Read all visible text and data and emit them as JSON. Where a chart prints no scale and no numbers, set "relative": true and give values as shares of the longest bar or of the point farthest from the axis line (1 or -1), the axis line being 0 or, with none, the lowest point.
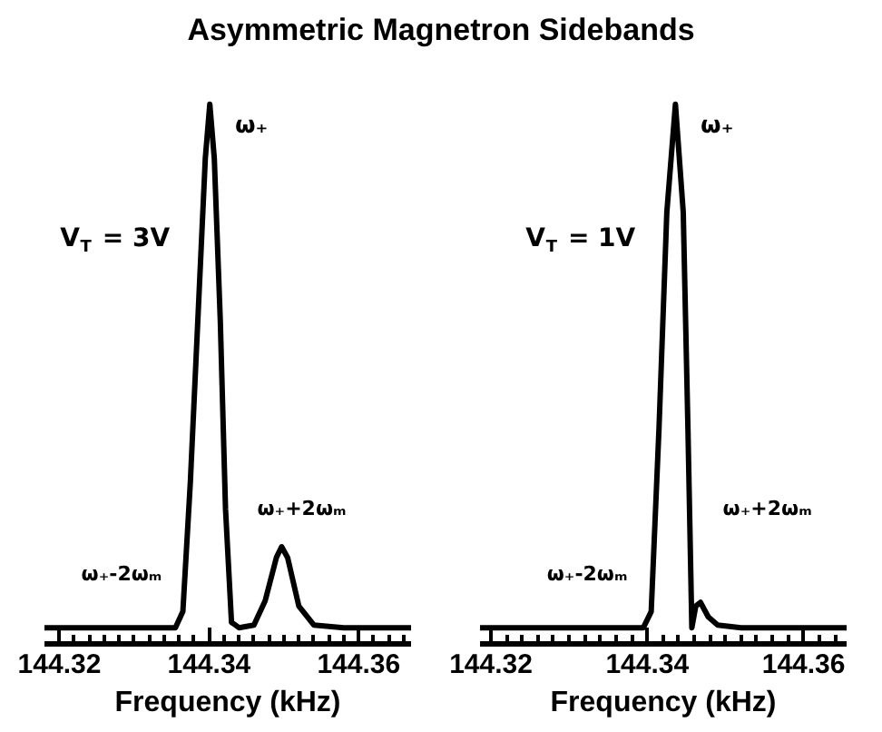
{
  "chart_data": [
    {
      "type": "other",
      "title": "Asymmetric Magnetron Sidebands"
    },
    {
      "type": "line",
      "xlabel": "Frequency (kHz)",
      "relative": true,
      "xlim": [
        144.318,
        144.367
      ],
      "xticks": [
        144.32,
        144.34,
        144.36
      ],
      "grid": false,
      "x": [
        144.318,
        144.3355,
        144.3365,
        144.3375,
        144.3385,
        144.3395,
        144.3401,
        144.3407,
        144.3415,
        144.3422,
        144.343,
        144.344,
        144.346,
        144.3475,
        144.349,
        144.3497,
        144.3505,
        144.352,
        144.354,
        144.358,
        144.367
      ],
      "series": [
        {
          "color": "#000000",
          "values": [
            0.03,
            0.03,
            0.06,
            0.3,
            0.6,
            0.9,
            1.0,
            0.9,
            0.6,
            0.25,
            0.04,
            0.03,
            0.035,
            0.08,
            0.16,
            0.18,
            0.16,
            0.07,
            0.035,
            0.03,
            0.03
          ]
        }
      ],
      "annotations": [
        "ω₊",
        "V$_{T}$ = 3V",
        "ω₊-2ωₘ",
        "ω₊+2ωₘ"
      ]
    },
    {
      "type": "line",
      "xlabel": "Frequency (kHz)",
      "relative": true,
      "xlim": [
        144.3186,
        144.3655
      ],
      "xticks": [
        144.32,
        144.34,
        144.36
      ],
      "grid": false,
      "x": [
        144.3186,
        144.3395,
        144.3405,
        144.3415,
        144.3425,
        144.3436,
        144.3446,
        144.3452,
        144.3457,
        144.3462,
        144.3468,
        144.3478,
        144.349,
        144.352,
        144.3655
      ],
      "series": [
        {
          "color": "#000000",
          "values": [
            0.03,
            0.03,
            0.06,
            0.4,
            0.8,
            1.0,
            0.8,
            0.4,
            0.03,
            0.07,
            0.077,
            0.05,
            0.035,
            0.03,
            0.03
          ]
        }
      ],
      "annotations": [
        "ω₊",
        "V$_{T}$ = 1V",
        "ω₊-2ωₘ",
        "ω₊+2ωₘ"
      ]
    }
  ]
}
